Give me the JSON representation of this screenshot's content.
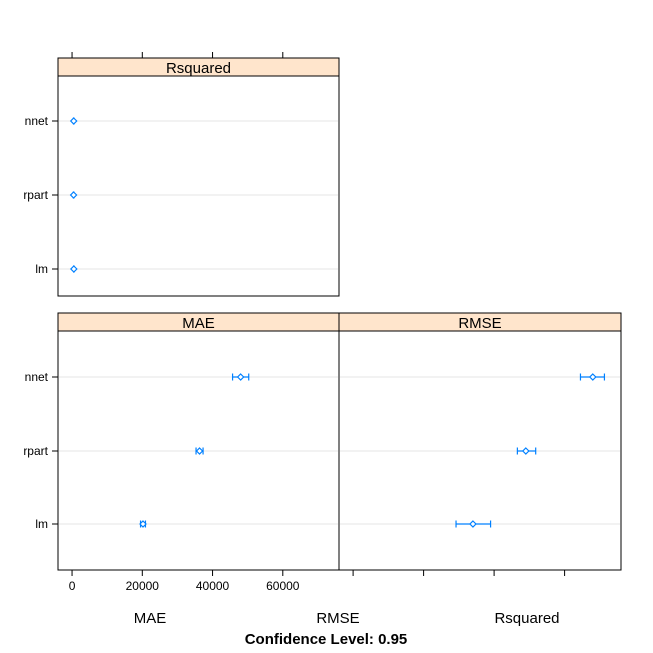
{
  "chart_data": {
    "type": "dotplot",
    "categories": [
      "nnet",
      "rpart",
      "lm"
    ],
    "x_ticks": [
      0,
      20000,
      40000,
      60000
    ],
    "xlim": [
      -4000,
      76000
    ],
    "panels": [
      {
        "name": "Rsquared",
        "points": [
          {
            "category": "nnet",
            "value": 0.6,
            "lower": 0.4,
            "upper": 0.8
          },
          {
            "category": "rpart",
            "value": 0.5,
            "lower": 0.3,
            "upper": 0.7
          },
          {
            "category": "lm",
            "value": 0.7,
            "lower": 0.5,
            "upper": 0.9
          }
        ]
      },
      {
        "name": "MAE",
        "points": [
          {
            "category": "nnet",
            "value": 48000,
            "lower": 45700,
            "upper": 50300
          },
          {
            "category": "rpart",
            "value": 36300,
            "lower": 35300,
            "upper": 37300
          },
          {
            "category": "lm",
            "value": 20200,
            "lower": 19500,
            "upper": 20900
          }
        ]
      },
      {
        "name": "RMSE",
        "points": [
          {
            "category": "nnet",
            "value": 68000,
            "lower": 64500,
            "upper": 71300
          },
          {
            "category": "rpart",
            "value": 49000,
            "lower": 46600,
            "upper": 51800
          },
          {
            "category": "lm",
            "value": 34000,
            "lower": 29200,
            "upper": 39000
          }
        ]
      }
    ],
    "bottom_labels": [
      "MAE",
      "RMSE",
      "Rsquared"
    ],
    "footer": "Confidence Level: 0.95",
    "colors": {
      "strip": "#ffe5cc",
      "point": "#0080ff",
      "grid": "#e6e6e6"
    }
  }
}
